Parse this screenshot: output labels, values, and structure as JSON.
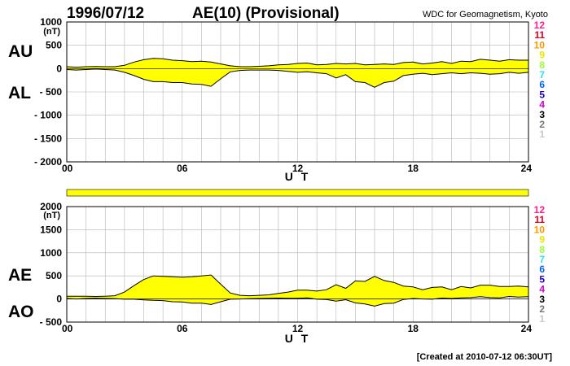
{
  "header": {
    "date": "1996/07/12",
    "title": "AE(10) (Provisional)",
    "source": "WDC for Geomagnetism, Kyoto"
  },
  "footer": {
    "created": "[Created at 2010-07-12 06:30UT]"
  },
  "station_numbers": [
    {
      "label": "12",
      "color": "#ff1f8f"
    },
    {
      "label": "11",
      "color": "#e0001a"
    },
    {
      "label": "10",
      "color": "#ff9900"
    },
    {
      "label": "9",
      "color": "#e6e600"
    },
    {
      "label": "8",
      "color": "#99ff33"
    },
    {
      "label": "7",
      "color": "#33e0e0"
    },
    {
      "label": "6",
      "color": "#0066ff"
    },
    {
      "label": "5",
      "color": "#2200cc"
    },
    {
      "label": "4",
      "color": "#cc00cc"
    },
    {
      "label": "3",
      "color": "#000000"
    },
    {
      "label": "2",
      "color": "#777777"
    },
    {
      "label": "1",
      "color": "#c8c8c8"
    }
  ],
  "colors": {
    "fill": "#ffff00",
    "line": "#000000",
    "grid": "#b4b4b4"
  },
  "chart_data": [
    {
      "type": "area",
      "series": [
        {
          "name": "AU"
        },
        {
          "name": "AL"
        }
      ],
      "left_labels": [
        "AU",
        "AL"
      ],
      "unit": "(nT)",
      "xlabel": "U T",
      "xlim": [
        0,
        24
      ],
      "ylim": [
        -2000,
        1000
      ],
      "x_ticks": [
        "00",
        "06",
        "12",
        "18",
        "24"
      ],
      "y_ticks": [
        "1000",
        "500",
        "0",
        "- 500",
        "- 1000",
        "- 1500",
        "- 2000"
      ],
      "y_tick_values": [
        1000,
        500,
        0,
        -500,
        -1000,
        -1500,
        -2000
      ],
      "x": [
        0,
        0.5,
        1,
        1.5,
        2,
        2.5,
        3,
        3.5,
        4,
        4.5,
        5,
        5.5,
        6,
        6.5,
        7,
        7.5,
        8,
        8.5,
        9,
        9.5,
        10,
        10.5,
        11,
        11.5,
        12,
        12.5,
        13,
        13.5,
        14,
        14.5,
        15,
        15.5,
        16,
        16.5,
        17,
        17.5,
        18,
        18.5,
        19,
        19.5,
        20,
        20.5,
        21,
        21.5,
        22,
        22.5,
        23,
        23.5,
        24
      ],
      "au": [
        40,
        30,
        40,
        45,
        40,
        40,
        70,
        140,
        190,
        220,
        210,
        180,
        170,
        150,
        160,
        140,
        100,
        60,
        40,
        40,
        50,
        60,
        80,
        90,
        110,
        120,
        80,
        90,
        110,
        100,
        110,
        80,
        90,
        100,
        90,
        130,
        140,
        100,
        120,
        150,
        110,
        160,
        150,
        200,
        180,
        160,
        190,
        180,
        180
      ],
      "al": [
        -20,
        -30,
        -20,
        -10,
        -20,
        -30,
        -80,
        -150,
        -230,
        -280,
        -280,
        -300,
        -300,
        -330,
        -340,
        -380,
        -220,
        -70,
        -40,
        -30,
        -30,
        -30,
        -40,
        -60,
        -80,
        -70,
        -90,
        -110,
        -200,
        -130,
        -280,
        -300,
        -400,
        -300,
        -270,
        -150,
        -120,
        -100,
        -130,
        -110,
        -90,
        -110,
        -90,
        -100,
        -120,
        -110,
        -80,
        -100,
        -80
      ]
    },
    {
      "type": "area",
      "series": [
        {
          "name": "AE"
        },
        {
          "name": "AO"
        }
      ],
      "left_labels": [
        "AE",
        "AO"
      ],
      "unit": "(nT)",
      "xlabel": "U T",
      "xlim": [
        0,
        24
      ],
      "ylim": [
        -500,
        2000
      ],
      "x_ticks": [
        "00",
        "06",
        "12",
        "18",
        "24"
      ],
      "y_ticks": [
        "2000",
        "1500",
        "1000",
        "500",
        "0",
        "- 500"
      ],
      "y_tick_values": [
        2000,
        1500,
        1000,
        500,
        0,
        -500
      ],
      "x": [
        0,
        0.5,
        1,
        1.5,
        2,
        2.5,
        3,
        3.5,
        4,
        4.5,
        5,
        5.5,
        6,
        6.5,
        7,
        7.5,
        8,
        8.5,
        9,
        9.5,
        10,
        10.5,
        11,
        11.5,
        12,
        12.5,
        13,
        13.5,
        14,
        14.5,
        15,
        15.5,
        16,
        16.5,
        17,
        17.5,
        18,
        18.5,
        19,
        19.5,
        20,
        20.5,
        21,
        21.5,
        22,
        22.5,
        23,
        23.5,
        24
      ],
      "ae": [
        60,
        60,
        60,
        55,
        60,
        70,
        150,
        290,
        420,
        500,
        490,
        480,
        470,
        480,
        500,
        520,
        320,
        130,
        80,
        70,
        80,
        90,
        120,
        150,
        190,
        190,
        170,
        200,
        310,
        230,
        390,
        380,
        490,
        400,
        360,
        280,
        260,
        200,
        250,
        260,
        200,
        270,
        240,
        300,
        300,
        270,
        270,
        280,
        260
      ],
      "ao": [
        10,
        0,
        10,
        18,
        10,
        5,
        -5,
        -5,
        -20,
        -30,
        -35,
        -60,
        -65,
        -90,
        -90,
        -120,
        -60,
        -5,
        0,
        5,
        10,
        15,
        20,
        15,
        15,
        25,
        -5,
        -10,
        -45,
        -15,
        -85,
        -110,
        -155,
        -100,
        -90,
        -10,
        10,
        0,
        -5,
        20,
        10,
        25,
        30,
        50,
        30,
        25,
        55,
        40,
        50
      ]
    }
  ]
}
